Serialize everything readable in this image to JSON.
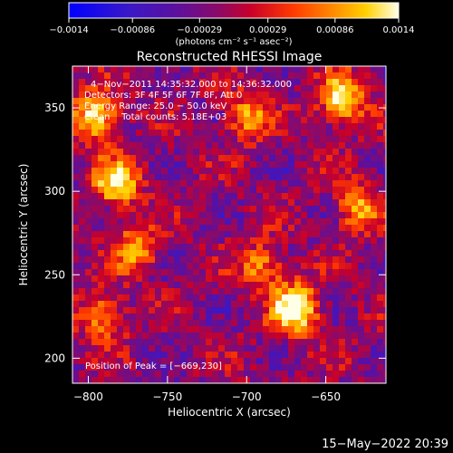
{
  "chart_data": {
    "type": "heatmap",
    "title": "Reconstructed RHESSI Image",
    "xlabel": "Heliocentric X (arcsec)",
    "ylabel": "Heliocentric Y (arcsec)",
    "xlim": [
      -810,
      -612
    ],
    "ylim": [
      185,
      375
    ],
    "xticks": [
      -800,
      -750,
      -700,
      -650
    ],
    "yticks": [
      200,
      250,
      300,
      350
    ],
    "xtick_labels": [
      "−800",
      "−750",
      "−700",
      "−650"
    ],
    "ytick_labels": [
      "200",
      "250",
      "300",
      "350"
    ],
    "colorbar": {
      "range": [
        -0.0014,
        0.0014
      ],
      "tick_labels": [
        "−0.0014",
        "−0.00086",
        "−0.00029",
        "0.00029",
        "0.00086",
        "0.0014"
      ],
      "tick_values": [
        -0.0014,
        -0.00086,
        -0.00029,
        0.00029,
        0.00086,
        0.0014
      ],
      "units_label": "(photons cm⁻² s⁻¹ asec⁻²)",
      "colormap": "rainbow-heat: blue to purple to red to orange to yellow to white"
    },
    "annotations": {
      "time": "4−Nov−2011 14:35:32.000 to 14:36:32.000",
      "detectors": "Detectors: 3F 4F 5F 6F 7F 8F, Att 0",
      "energy": "Energy Range: 25.0 − 50.0 keV",
      "clean": "Clean    Total counts: 5.18E+03",
      "peak": "Position of Peak = [−669,230]"
    },
    "peak_position": [
      -669,
      230
    ],
    "total_counts": 5180,
    "bright_regions": [
      {
        "x": -782,
        "y": 305,
        "level": "high"
      },
      {
        "x": -795,
        "y": 345,
        "level": "high"
      },
      {
        "x": -770,
        "y": 265,
        "level": "medium"
      },
      {
        "x": -790,
        "y": 225,
        "level": "medium"
      },
      {
        "x": -669,
        "y": 230,
        "level": "peak"
      },
      {
        "x": -640,
        "y": 355,
        "level": "high"
      },
      {
        "x": -630,
        "y": 290,
        "level": "medium"
      },
      {
        "x": -700,
        "y": 345,
        "level": "medium"
      },
      {
        "x": -690,
        "y": 255,
        "level": "medium"
      }
    ],
    "grid": false
  },
  "footer": {
    "date": "15−May−2022 20:39"
  }
}
